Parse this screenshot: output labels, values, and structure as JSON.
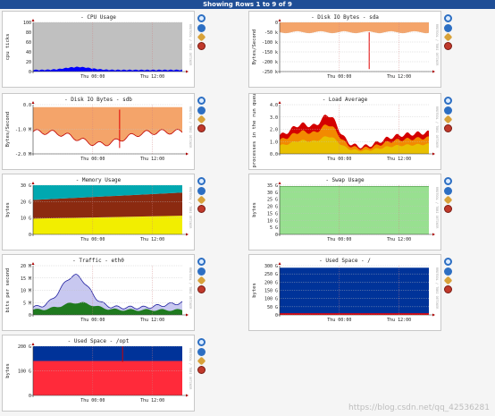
{
  "header": {
    "title": "Showing Rows 1 to 9 of 9"
  },
  "watermark": "https://blog.csdn.net/qq_42536281",
  "vertical_caption": "RRDTOOL / TOBI OETIKER",
  "graphs": [
    {
      "title": "- CPU Usage",
      "ylabel": "cpu ticks",
      "yticks": [
        "100",
        "80",
        "60",
        "40",
        "20",
        "0"
      ],
      "xticks": [
        "Thu 00:00",
        "Thu 12:00"
      ],
      "type": "cpu",
      "colors": {
        "bg": "#c0c0c0",
        "fill": "#0000ff"
      }
    },
    {
      "title": "- Disk IO Bytes - sda",
      "ylabel": "Bytes/Second",
      "yticks": [
        "0",
        "-50 k",
        "-100 k",
        "-150 k",
        "-200 k",
        "-250 k"
      ],
      "xticks": [
        "Thu 00:00",
        "Thu 12:00"
      ],
      "type": "diskA",
      "colors": {
        "fill": "#f4a46a",
        "spike": "#e00000"
      }
    },
    {
      "title": "- Disk IO Bytes - sdb",
      "ylabel": "Bytes/Second",
      "yticks": [
        "0.0",
        "-1.0 M",
        "-2.0 M"
      ],
      "xticks": [
        "Thu 00:00",
        "Thu 12:00"
      ],
      "type": "diskB",
      "colors": {
        "fill": "#f4a46a",
        "spike": "#e00000"
      }
    },
    {
      "title": "- Load Average",
      "ylabel": "processes in the run queue",
      "yticks": [
        "4.0",
        "3.0",
        "2.0",
        "1.0",
        "0.0"
      ],
      "xticks": [
        "Thu 00:00",
        "Thu 12:00"
      ],
      "type": "load",
      "colors": {
        "a": "#e8c000",
        "b": "#f28a00",
        "c": "#d40000"
      }
    },
    {
      "title": "- Memory Usage",
      "ylabel": "bytes",
      "yticks": [
        "30 G",
        "20 G",
        "10 G",
        "0"
      ],
      "xticks": [
        "Thu 00:00",
        "Thu 12:00"
      ],
      "type": "mem",
      "colors": {
        "cyan": "#00a8b0",
        "brown": "#8b2a10",
        "yellow": "#f2ee00"
      }
    },
    {
      "title": "- Swap Usage",
      "ylabel": "bytes",
      "yticks": [
        "35 G",
        "30 G",
        "25 G",
        "20 G",
        "15 G",
        "10 G",
        "5 G",
        "0"
      ],
      "xticks": [
        "Thu 00:00",
        "Thu 12:00"
      ],
      "type": "swap",
      "colors": {
        "fill": "#98e090"
      }
    },
    {
      "title": "- Traffic - eth0",
      "ylabel": "bits per second",
      "yticks": [
        "20 M",
        "15 M",
        "10 M",
        "5 M",
        "0"
      ],
      "xticks": [
        "Thu 00:00",
        "Thu 12:00"
      ],
      "type": "traffic",
      "colors": {
        "lav": "#c8c8f0",
        "green": "#1f7a1f",
        "line": "#2020a0"
      }
    },
    {
      "title": "- Used Space - /",
      "ylabel": "bytes",
      "yticks": [
        "300 G",
        "250 G",
        "200 G",
        "150 G",
        "100 G",
        "50 G",
        "0"
      ],
      "xticks": [
        "Thu 00:00",
        "Thu 12:00"
      ],
      "type": "usedroot",
      "colors": {
        "blue": "#003399",
        "red": "#ff0000"
      }
    },
    {
      "title": "- Used Space - /opt",
      "ylabel": "bytes",
      "yticks": [
        "200 G",
        "100 G",
        "0"
      ],
      "xticks": [
        "Thu 00:00",
        "Thu 12:00"
      ],
      "type": "usedopt",
      "colors": {
        "blue": "#003399",
        "red": "#ff2a3a"
      }
    }
  ]
}
